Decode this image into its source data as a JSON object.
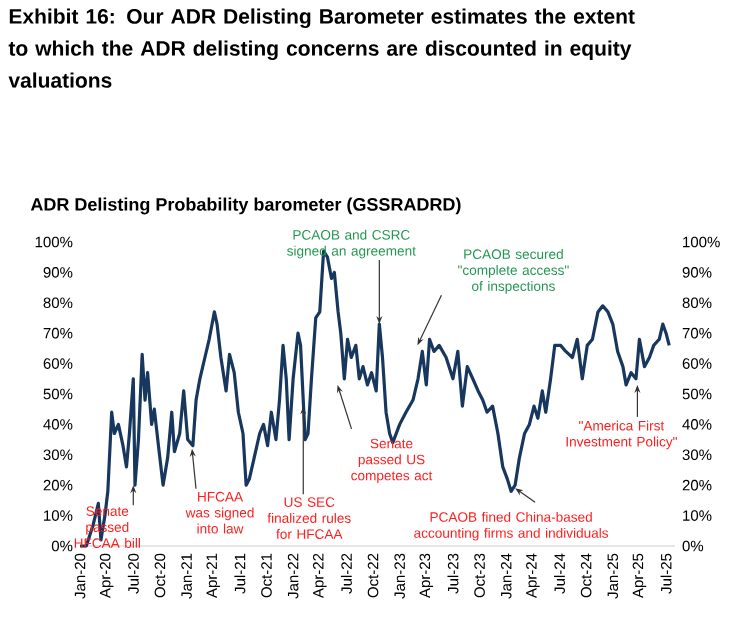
{
  "chart_data": {
    "type": "line",
    "title": "Exhibit 16: Our ADR Delisting Barometer estimates the extent to which the ADR delisting concerns are discounted in equity valuations",
    "subtitle": "ADR Delisting Probability barometer (GSSRADRD)",
    "x": [
      "2020-01-01",
      "2020-01-23",
      "2020-02-15",
      "2020-03-03",
      "2020-03-12",
      "2020-03-26",
      "2020-04-05",
      "2020-04-18",
      "2020-04-27",
      "2020-05-11",
      "2020-05-27",
      "2020-06-08",
      "2020-06-18",
      "2020-07-01",
      "2020-07-07",
      "2020-07-19",
      "2020-08-01",
      "2020-08-11",
      "2020-08-20",
      "2020-09-03",
      "2020-09-12",
      "2020-09-26",
      "2020-10-12",
      "2020-10-28",
      "2020-11-11",
      "2020-11-20",
      "2020-12-08",
      "2020-12-22",
      "2021-01-05",
      "2021-01-23",
      "2021-02-03",
      "2021-02-15",
      "2021-03-03",
      "2021-03-18",
      "2021-04-05",
      "2021-04-14",
      "2021-04-27",
      "2021-05-15",
      "2021-05-27",
      "2021-06-12",
      "2021-06-26",
      "2021-07-12",
      "2021-07-23",
      "2021-08-03",
      "2021-08-20",
      "2021-09-08",
      "2021-09-21",
      "2021-10-05",
      "2021-10-18",
      "2021-11-03",
      "2021-11-15",
      "2021-11-27",
      "2021-12-08",
      "2021-12-18",
      "2022-01-01",
      "2022-01-18",
      "2022-01-27",
      "2022-02-11",
      "2022-02-20",
      "2022-03-03",
      "2022-03-18",
      "2022-04-01",
      "2022-04-14",
      "2022-04-27",
      "2022-05-11",
      "2022-05-21",
      "2022-06-03",
      "2022-06-12",
      "2022-06-24",
      "2022-07-05",
      "2022-07-18",
      "2022-08-03",
      "2022-08-15",
      "2022-08-28",
      "2022-09-12",
      "2022-09-26",
      "2022-10-12",
      "2022-10-23",
      "2022-11-03",
      "2022-11-15",
      "2022-11-27",
      "2022-12-08",
      "2023-01-01",
      "2023-01-23",
      "2023-02-15",
      "2023-03-03",
      "2023-03-18",
      "2023-04-01",
      "2023-04-12",
      "2023-04-27",
      "2023-05-15",
      "2023-06-08",
      "2023-07-01",
      "2023-07-18",
      "2023-08-03",
      "2023-08-20",
      "2023-09-08",
      "2023-09-26",
      "2023-10-12",
      "2023-10-27",
      "2023-11-15",
      "2023-12-03",
      "2023-12-20",
      "2024-01-05",
      "2024-01-18",
      "2024-02-01",
      "2024-02-15",
      "2024-03-03",
      "2024-03-20",
      "2024-04-05",
      "2024-04-18",
      "2024-05-03",
      "2024-05-15",
      "2024-06-01",
      "2024-06-15",
      "2024-07-05",
      "2024-07-23",
      "2024-08-15",
      "2024-09-01",
      "2024-09-18",
      "2024-10-05",
      "2024-10-23",
      "2024-11-11",
      "2024-11-27",
      "2024-12-15",
      "2025-01-01",
      "2025-01-18",
      "2025-02-05",
      "2025-02-15",
      "2025-03-03",
      "2025-03-20",
      "2025-04-01",
      "2025-04-18",
      "2025-05-05",
      "2025-05-20",
      "2025-06-08",
      "2025-06-20",
      "2025-07-01",
      "2025-07-12"
    ],
    "series": [
      {
        "color": "#17375e",
        "values": [
          0,
          0,
          7,
          14,
          2,
          10,
          18,
          44,
          37,
          40,
          33,
          26,
          37,
          55,
          20,
          35,
          63,
          48,
          57,
          40,
          45,
          33,
          20,
          29,
          44,
          31,
          37,
          51,
          35,
          33,
          48,
          55,
          62,
          68,
          77,
          73,
          62,
          51,
          63,
          57,
          44,
          37,
          20,
          22,
          29,
          37,
          40,
          33,
          44,
          35,
          48,
          66,
          55,
          35,
          55,
          70,
          66,
          35,
          37,
          55,
          75,
          77,
          97,
          95,
          88,
          90,
          77,
          70,
          55,
          68,
          62,
          66,
          55,
          59,
          53,
          57,
          51,
          73,
          62,
          44,
          37,
          34,
          40,
          44,
          48,
          55,
          64,
          53,
          68,
          64,
          66,
          62,
          55,
          64,
          46,
          59,
          55,
          51,
          48,
          44,
          46,
          37,
          26,
          22,
          18,
          20,
          29,
          37,
          40,
          46,
          42,
          51,
          44,
          55,
          66,
          66,
          64,
          62,
          68,
          55,
          66,
          68,
          77,
          79,
          77,
          73,
          64,
          59,
          53,
          57,
          55,
          68,
          59,
          62,
          66,
          68,
          73,
          70,
          66
        ]
      }
    ],
    "xlim": [
      "2020-01-01",
      "2025-08-01"
    ],
    "xticks": [
      {
        "value": "2020-01",
        "label": "Jan-20"
      },
      {
        "value": "2020-04",
        "label": "Apr-20"
      },
      {
        "value": "2020-07",
        "label": "Jul-20"
      },
      {
        "value": "2020-10",
        "label": "Oct-20"
      },
      {
        "value": "2021-01",
        "label": "Jan-21"
      },
      {
        "value": "2021-04",
        "label": "Apr-21"
      },
      {
        "value": "2021-07",
        "label": "Jul-21"
      },
      {
        "value": "2021-10",
        "label": "Oct-21"
      },
      {
        "value": "2022-01",
        "label": "Jan-22"
      },
      {
        "value": "2022-04",
        "label": "Apr-22"
      },
      {
        "value": "2022-07",
        "label": "Jul-22"
      },
      {
        "value": "2022-10",
        "label": "Oct-22"
      },
      {
        "value": "2023-01",
        "label": "Jan-23"
      },
      {
        "value": "2023-04",
        "label": "Apr-23"
      },
      {
        "value": "2023-07",
        "label": "Jul-23"
      },
      {
        "value": "2023-10",
        "label": "Oct-23"
      },
      {
        "value": "2024-01",
        "label": "Jan-24"
      },
      {
        "value": "2024-04",
        "label": "Apr-24"
      },
      {
        "value": "2024-07",
        "label": "Jul-24"
      },
      {
        "value": "2024-10",
        "label": "Oct-24"
      },
      {
        "value": "2025-01",
        "label": "Jan-25"
      },
      {
        "value": "2025-04",
        "label": "Apr-25"
      },
      {
        "value": "2025-07",
        "label": "Jul-25"
      }
    ],
    "ylim": [
      0,
      100
    ],
    "yticks": [
      {
        "value": 0,
        "label": "0%"
      },
      {
        "value": 10,
        "label": "10%"
      },
      {
        "value": 20,
        "label": "20%"
      },
      {
        "value": 30,
        "label": "30%"
      },
      {
        "value": 40,
        "label": "40%"
      },
      {
        "value": 50,
        "label": "50%"
      },
      {
        "value": 60,
        "label": "60%"
      },
      {
        "value": 70,
        "label": "70%"
      },
      {
        "value": 80,
        "label": "80%"
      },
      {
        "value": 90,
        "label": "90%"
      },
      {
        "value": 100,
        "label": "100%"
      }
    ],
    "y2lim": [
      0,
      100
    ],
    "y2ticks": [
      {
        "value": 0,
        "label": "0%"
      },
      {
        "value": 10,
        "label": "10%"
      },
      {
        "value": 20,
        "label": "20%"
      },
      {
        "value": 30,
        "label": "30%"
      },
      {
        "value": 40,
        "label": "40%"
      },
      {
        "value": 50,
        "label": "50%"
      },
      {
        "value": 60,
        "label": "60%"
      },
      {
        "value": 70,
        "label": "70%"
      },
      {
        "value": 80,
        "label": "80%"
      },
      {
        "value": 90,
        "label": "90%"
      },
      {
        "value": 100,
        "label": "100%"
      }
    ],
    "annotations": [
      {
        "text": "Senate passed HFCAA bill",
        "x": "2020-07",
        "y": 20
      },
      {
        "text": "HFCAA was signed into law",
        "x": "2021-01-20",
        "y": 32
      },
      {
        "text": "US SEC finalized rules for HFCAA",
        "x": "2022-02-05",
        "y": 46
      },
      {
        "text": "Senate passed US competes act",
        "x": "2022-06",
        "y": 53
      },
      {
        "text": "PCAOB and CSRC signed an agreement",
        "x": "2022-10-23",
        "y": 73
      },
      {
        "text": "PCAOB secured \"complete access\" of inspections",
        "x": "2023-03",
        "y": 66
      },
      {
        "text": "PCAOB fined China-based accounting firms and individuals",
        "x": "2024-02-01",
        "y": 19
      },
      {
        "text": "\"America First Investment Policy\"",
        "x": "2025-03-25",
        "y": 53
      }
    ]
  }
}
